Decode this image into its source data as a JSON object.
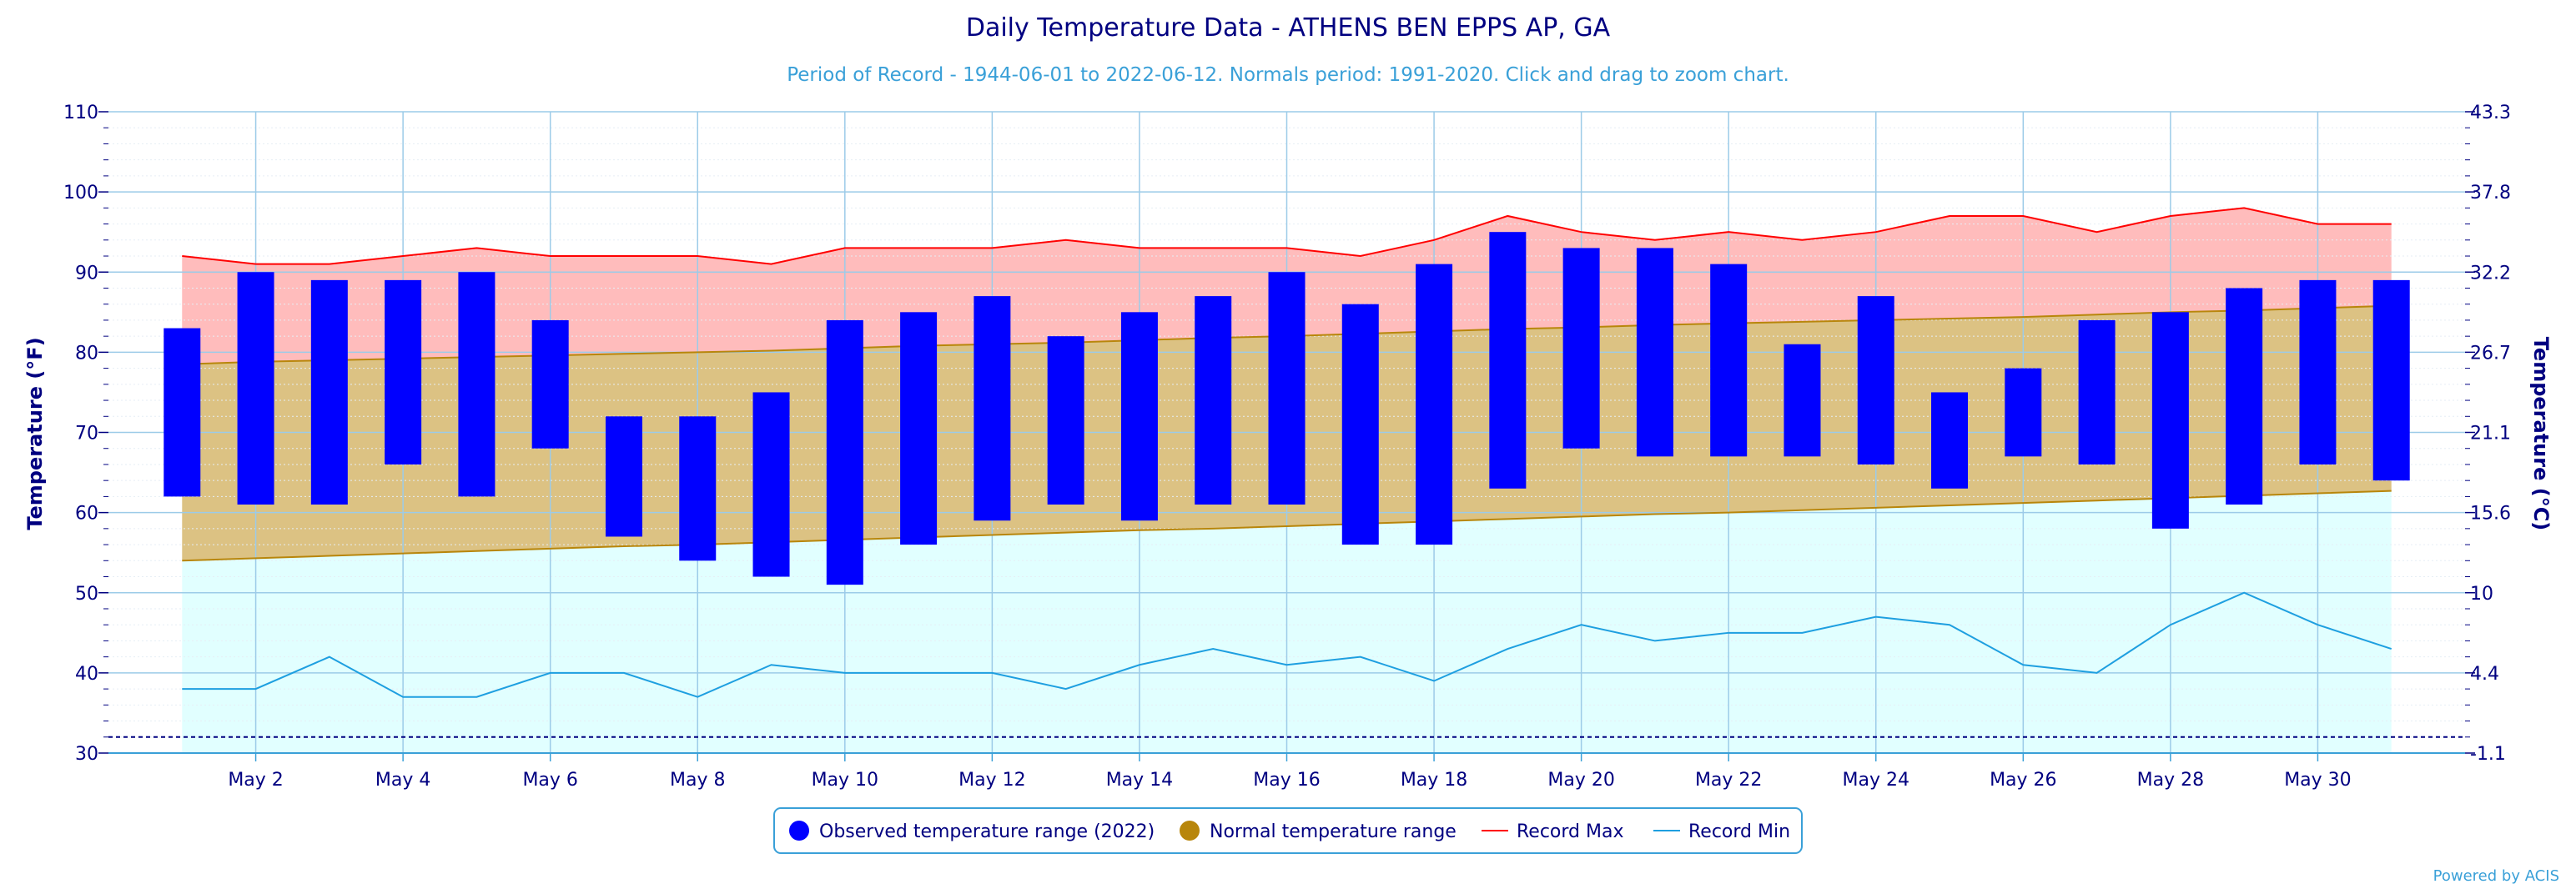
{
  "chart_data": {
    "type": "bar",
    "title": "Daily Temperature Data - ATHENS BEN EPPS AP, GA",
    "subtitle": "Period of Record - 1944-06-01 to 2022-06-12. Normals period: 1991-2020. Click and drag to zoom chart.",
    "ylabel": "Temperature (°F)",
    "ylabel_right": "Temperature (°C)",
    "ylim": [
      30,
      110
    ],
    "xlim": [
      0,
      32
    ],
    "yticks": [
      30,
      40,
      50,
      60,
      70,
      80,
      90,
      100,
      110
    ],
    "yticks_right": [
      "-1.1",
      "4.4",
      "10",
      "15.6",
      "21.1",
      "26.7",
      "32.2",
      "37.8",
      "43.3"
    ],
    "xticks": [
      {
        "day": 2,
        "label": "May 2"
      },
      {
        "day": 4,
        "label": "May 4"
      },
      {
        "day": 6,
        "label": "May 6"
      },
      {
        "day": 8,
        "label": "May 8"
      },
      {
        "day": 10,
        "label": "May 10"
      },
      {
        "day": 12,
        "label": "May 12"
      },
      {
        "day": 14,
        "label": "May 14"
      },
      {
        "day": 16,
        "label": "May 16"
      },
      {
        "day": 18,
        "label": "May 18"
      },
      {
        "day": 20,
        "label": "May 20"
      },
      {
        "day": 22,
        "label": "May 22"
      },
      {
        "day": 24,
        "label": "May 24"
      },
      {
        "day": 26,
        "label": "May 26"
      },
      {
        "day": 28,
        "label": "May 28"
      },
      {
        "day": 30,
        "label": "May 30"
      }
    ],
    "days": [
      1,
      2,
      3,
      4,
      5,
      6,
      7,
      8,
      9,
      10,
      11,
      12,
      13,
      14,
      15,
      16,
      17,
      18,
      19,
      20,
      21,
      22,
      23,
      24,
      25,
      26,
      27,
      28,
      29,
      30,
      31
    ],
    "grid": true,
    "legend_position": "bottom-center",
    "reference_line": 32,
    "series": [
      {
        "name": "Observed temperature range (2022)",
        "type": "range-bar",
        "color": "#0000ff",
        "low": [
          62,
          61,
          61,
          66,
          62,
          68,
          57,
          54,
          52,
          51,
          56,
          59,
          61,
          59,
          61,
          61,
          56,
          56,
          63,
          68,
          67,
          67,
          67,
          66,
          63,
          67,
          66,
          58,
          61,
          66,
          64
        ],
        "high": [
          83,
          90,
          89,
          89,
          90,
          84,
          72,
          72,
          75,
          84,
          85,
          87,
          82,
          85,
          87,
          90,
          86,
          91,
          95,
          93,
          93,
          91,
          81,
          87,
          75,
          78,
          84,
          85,
          88,
          89,
          89
        ]
      },
      {
        "name": "Normal temperature range",
        "type": "range-area",
        "color": "#b8860b",
        "low": [
          54,
          54.3,
          54.6,
          54.9,
          55.2,
          55.5,
          55.8,
          56,
          56.3,
          56.6,
          56.9,
          57.2,
          57.5,
          57.8,
          58,
          58.3,
          58.6,
          58.9,
          59.2,
          59.5,
          59.8,
          60,
          60.3,
          60.6,
          60.9,
          61.2,
          61.5,
          61.8,
          62.1,
          62.4,
          62.7
        ],
        "high": [
          78.5,
          78.8,
          79,
          79.2,
          79.4,
          79.6,
          79.8,
          80,
          80.2,
          80.5,
          80.8,
          81,
          81.2,
          81.5,
          81.8,
          82,
          82.3,
          82.6,
          82.9,
          83.1,
          83.4,
          83.6,
          83.8,
          84,
          84.2,
          84.4,
          84.7,
          85,
          85.2,
          85.5,
          85.8
        ]
      },
      {
        "name": "Record Max",
        "type": "line",
        "color": "#ff0000",
        "values": [
          92,
          91,
          91,
          92,
          93,
          92,
          92,
          92,
          91,
          93,
          93,
          93,
          94,
          93,
          93,
          93,
          92,
          94,
          97,
          95,
          94,
          95,
          94,
          95,
          97,
          97,
          95,
          97,
          98,
          96,
          96
        ]
      },
      {
        "name": "Record Min",
        "type": "line",
        "color": "#1e9fe0",
        "values": [
          38,
          38,
          42,
          37,
          37,
          40,
          40,
          37,
          41,
          40,
          40,
          40,
          38,
          41,
          43,
          41,
          42,
          39,
          43,
          46,
          44,
          45,
          45,
          47,
          46,
          41,
          40,
          46,
          50,
          46,
          43
        ]
      }
    ]
  },
  "credit": "Powered by ACIS"
}
